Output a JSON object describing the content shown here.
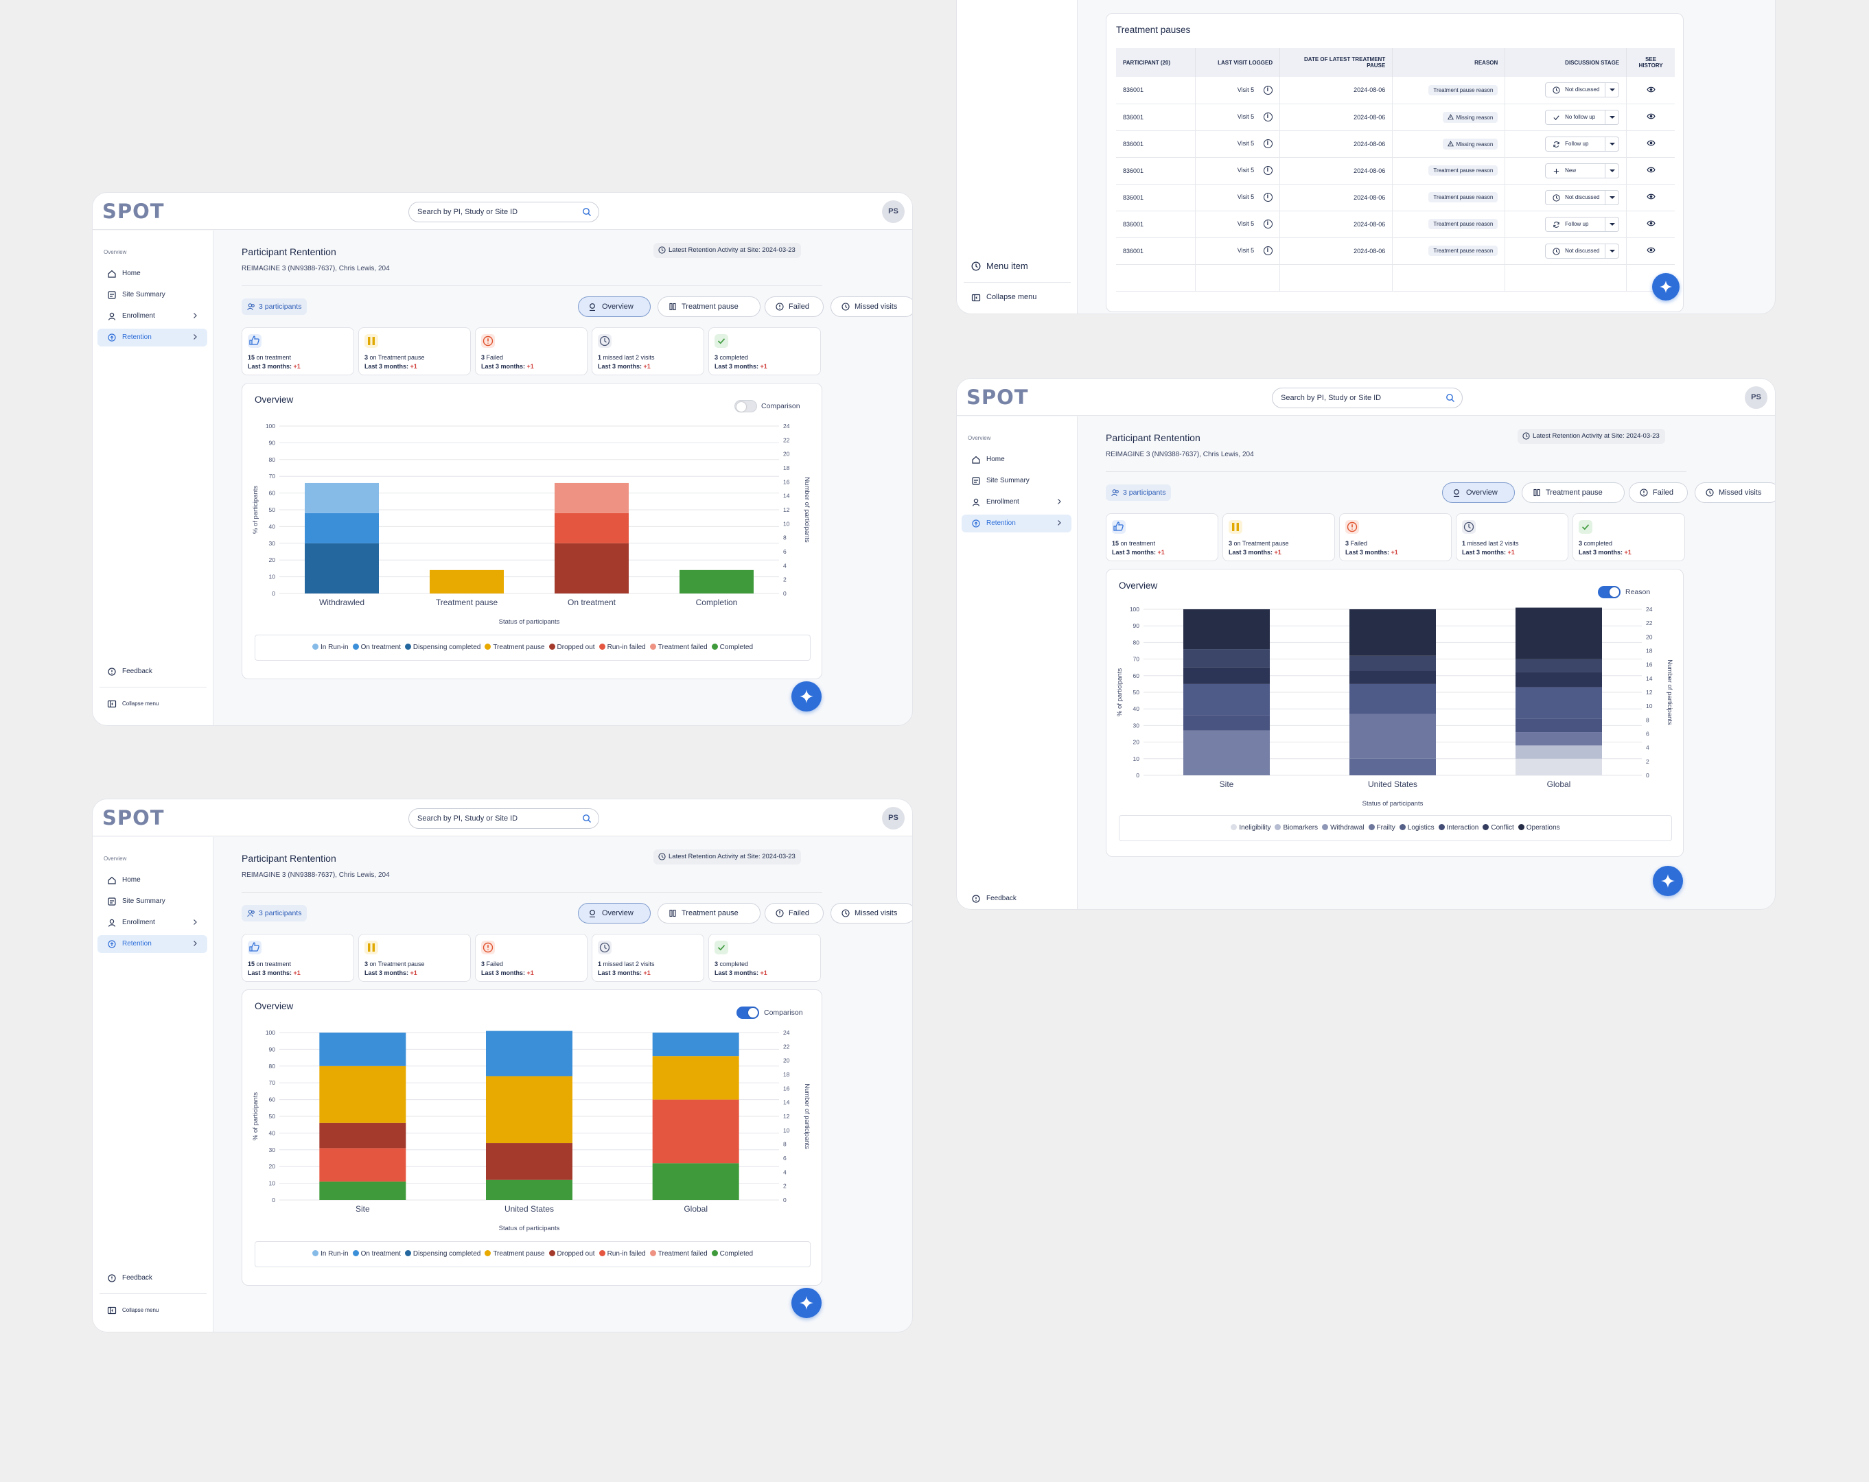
{
  "app": {
    "logo": "SPOT",
    "search_placeholder": "Search by PI, Study or Site ID",
    "avatar": "PS"
  },
  "sidebar": {
    "section": "Overview",
    "items": [
      {
        "label": "Home",
        "icon": "home-icon"
      },
      {
        "label": "Site Summary",
        "icon": "summary-icon"
      },
      {
        "label": "Enrollment",
        "icon": "user-icon"
      },
      {
        "label": "Retention",
        "icon": "retention-icon"
      }
    ],
    "feedback": "Feedback",
    "collapse": "Collapse menu",
    "menu_item": "Menu item"
  },
  "page": {
    "title": "Participant  Rentention",
    "subtitle": "REIMAGINE 3 (NN9388-7637), Chris Lewis, 204",
    "latest_activity": "Latest Retention Activity at Site: 2024-03-23",
    "participants": "3 participants",
    "tabs": [
      "Overview",
      "Treatment pause",
      "Failed",
      "Missed visits"
    ]
  },
  "stats": [
    {
      "num": "15",
      "text": " on treatment",
      "trend": "Last 3 months: ",
      "plus": "+1",
      "color": "#2f6fd8"
    },
    {
      "num": "3",
      "text": " on Treatment pause",
      "trend": "Last 3 months: ",
      "plus": "+1",
      "color": "#e0a800"
    },
    {
      "num": "3",
      "text": " Failed",
      "trend": "Last 3 months: ",
      "plus": "+1",
      "color": "#e0542f"
    },
    {
      "num": "1",
      "text": " missed last 2 visits",
      "trend": "Last 3 months: ",
      "plus": "+1",
      "color": "#4a5473"
    },
    {
      "num": "3",
      "text": " completed",
      "trend": "Last 3 months: ",
      "plus": "+1",
      "color": "#3c9a3c"
    }
  ],
  "panels": {
    "overview": "Overview",
    "comparison": "Comparison",
    "reason": "Reason",
    "treatment_pauses": "Treatment pauses"
  },
  "legend_status": [
    {
      "label": "In Run-in",
      "color": "#86bbe8"
    },
    {
      "label": "On treatment",
      "color": "#3b8fd9"
    },
    {
      "label": "Dispensing completed",
      "color": "#23679e"
    },
    {
      "label": "Treatment pause",
      "color": "#e8aa00"
    },
    {
      "label": "Dropped out",
      "color": "#a33a2c"
    },
    {
      "label": "Run-in failed",
      "color": "#e55640"
    },
    {
      "label": "Treatment failed",
      "color": "#ee9383"
    },
    {
      "label": "Completed",
      "color": "#3e9a3a"
    }
  ],
  "legend_reason": [
    {
      "label": "Ineligibility",
      "color": "#dcdfe8"
    },
    {
      "label": "Biomarkers",
      "color": "#b6bcd1"
    },
    {
      "label": "Withdrawal",
      "color": "#8f97b6"
    },
    {
      "label": "Frailty",
      "color": "#6e789d"
    },
    {
      "label": "Logistics",
      "color": "#56618a"
    },
    {
      "label": "Interaction",
      "color": "#434d75"
    },
    {
      "label": "Conflict",
      "color": "#343d5f"
    },
    {
      "label": "Operations",
      "color": "#262d46"
    }
  ],
  "chart_data": [
    {
      "type": "bar",
      "stacked": true,
      "categories": [
        "Withdrawled",
        "Treatment pause",
        "On treatment",
        "Completion"
      ],
      "series": [
        {
          "name": "Dispensing completed",
          "values": [
            30,
            0,
            0,
            0
          ]
        },
        {
          "name": "On treatment",
          "values": [
            18,
            0,
            0,
            0
          ]
        },
        {
          "name": "In Run-in",
          "values": [
            18,
            0,
            0,
            0
          ]
        },
        {
          "name": "Treatment pause",
          "values": [
            0,
            14,
            0,
            0
          ]
        },
        {
          "name": "Dropped out",
          "values": [
            0,
            0,
            30,
            0
          ]
        },
        {
          "name": "Run-in failed",
          "values": [
            0,
            0,
            18,
            0
          ]
        },
        {
          "name": "Treatment failed",
          "values": [
            0,
            0,
            18,
            0
          ]
        },
        {
          "name": "Completed",
          "values": [
            0,
            0,
            0,
            14
          ]
        }
      ],
      "xlabel": "Status of participants",
      "ylabel": "% of participants",
      "y2label": "Number of participants",
      "ylim": [
        0,
        100
      ],
      "y2lim": [
        0,
        24
      ],
      "yticks": [
        0,
        10,
        20,
        30,
        40,
        50,
        60,
        70,
        80,
        90,
        100
      ],
      "y2ticks": [
        0,
        2,
        4,
        6,
        8,
        10,
        12,
        14,
        16,
        18,
        20,
        22,
        24
      ],
      "grid": true,
      "legend": "bottom"
    },
    {
      "type": "bar",
      "stacked": true,
      "categories": [
        "Site",
        "United States",
        "Global"
      ],
      "series": [
        {
          "name": "Completed",
          "values": [
            11,
            12,
            22
          ]
        },
        {
          "name": "Run-in failed",
          "values": [
            20,
            0,
            38
          ]
        },
        {
          "name": "Dropped out",
          "values": [
            15,
            22,
            0
          ]
        },
        {
          "name": "Treatment pause",
          "values": [
            34,
            40,
            26
          ]
        },
        {
          "name": "On treatment",
          "values": [
            20,
            27,
            14
          ]
        }
      ],
      "xlabel": "Status of participants",
      "ylabel": "% of participants",
      "y2label": "Number of participants",
      "ylim": [
        0,
        100
      ],
      "y2lim": [
        0,
        24
      ],
      "grid": true,
      "legend": "bottom"
    },
    {
      "type": "bar",
      "stacked": true,
      "categories": [
        "Site",
        "United States",
        "Global"
      ],
      "series": [
        {
          "name": "Withdrawal",
          "values": [
            27,
            0,
            0
          ]
        },
        {
          "name": "Interaction",
          "values": [
            0,
            10,
            0
          ]
        },
        {
          "name": "Ineligibility",
          "values": [
            0,
            0,
            10
          ]
        },
        {
          "name": "Biomarkers",
          "values": [
            0,
            0,
            8
          ]
        },
        {
          "name": "Frailty",
          "values": [
            0,
            27,
            8
          ]
        },
        {
          "name": "Logistics",
          "values": [
            9,
            0,
            8
          ]
        },
        {
          "name": "Interaction",
          "values": [
            19,
            18,
            19
          ]
        },
        {
          "name": "Conflict",
          "values": [
            10,
            8,
            9
          ]
        },
        {
          "name": "Operations",
          "values": [
            11,
            9,
            8
          ]
        },
        {
          "name": "Operations",
          "values": [
            24,
            28,
            31
          ]
        }
      ],
      "xlabel": "Status of participants",
      "ylabel": "% of participants",
      "y2label": "Number of participants",
      "ylim": [
        0,
        100
      ],
      "y2lim": [
        0,
        24
      ],
      "grid": true,
      "legend": "bottom"
    }
  ],
  "table": {
    "headers": [
      "PARTICIPANT (20)",
      "LAST VISIT LOGGED",
      "DATE OF LATEST TREATMENT PAUSE",
      "REASON",
      "DISCUSSION STAGE",
      "SEE HISTORY"
    ],
    "rows": [
      {
        "id": "836001",
        "visit": "Visit 5",
        "date": "2024-08-06",
        "reason": "Treatment pause reason",
        "stage": "Not discussed",
        "stage_icon": "clock"
      },
      {
        "id": "836001",
        "visit": "Visit 5",
        "date": "2024-08-06",
        "reason": "Missing reason",
        "stage": "No follow up",
        "stage_icon": "check"
      },
      {
        "id": "836001",
        "visit": "Visit 5",
        "date": "2024-08-06",
        "reason": "Missing reason",
        "stage": "Follow up",
        "stage_icon": "refresh"
      },
      {
        "id": "836001",
        "visit": "Visit 5",
        "date": "2024-08-06",
        "reason": "Treatment pause reason",
        "stage": "New",
        "stage_icon": "plus"
      },
      {
        "id": "836001",
        "visit": "Visit 5",
        "date": "2024-08-06",
        "reason": "Treatment pause reason",
        "stage": "Not discussed",
        "stage_icon": "clock"
      },
      {
        "id": "836001",
        "visit": "Visit 5",
        "date": "2024-08-06",
        "reason": "Treatment pause reason",
        "stage": "Follow up",
        "stage_icon": "refresh"
      },
      {
        "id": "836001",
        "visit": "Visit 5",
        "date": "2024-08-06",
        "reason": "Treatment pause reason",
        "stage": "Not discussed",
        "stage_icon": "clock"
      }
    ]
  }
}
